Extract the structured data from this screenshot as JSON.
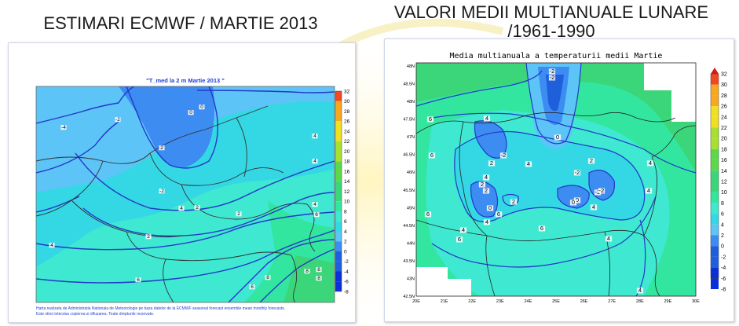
{
  "left": {
    "slide_title": "ESTIMARI ECMWF / MARTIE 2013",
    "map_title": "\"T_med la 2 m Martie 2013 \"",
    "footnote_1": "Harta realizata de Administratia Nationala de Meteorologie pe baza datelor de la ECMWF seasonal forecast ensemble mean monthly forecasts.",
    "footnote_2": "Este strict interzisa copierea si difuzarea. Toate drepturile rezervate.",
    "colorbar_ticks": [
      "32",
      "30",
      "28",
      "26",
      "24",
      "22",
      "20",
      "18",
      "16",
      "14",
      "12",
      "10",
      "8",
      "6",
      "4",
      "2",
      "0",
      "-2",
      "-4",
      "-6",
      "-8"
    ],
    "contour_labels": [
      "-4",
      "-2",
      "2",
      "0",
      "0",
      "2",
      "-2",
      "2",
      "4",
      "4",
      "4",
      "2",
      "4",
      "6",
      "8",
      "8",
      "4",
      "6",
      "6",
      "8",
      "8"
    ]
  },
  "right": {
    "slide_title_line1": "VALORI MEDII MULTIANUALE LUNARE",
    "slide_title_line2": "/1961-1990",
    "map_title": "Media multianuala a temperaturii medii Martie",
    "lat_ticks": [
      "48N",
      "48.5N",
      "48N",
      "47.5N",
      "47N",
      "46.5N",
      "46N",
      "45.5N",
      "45N",
      "44.5N",
      "44N",
      "43.5N",
      "43N",
      "42.5N"
    ],
    "lon_ticks": [
      "20E",
      "21E",
      "22E",
      "23E",
      "24E",
      "25E",
      "26E",
      "27E",
      "28E",
      "29E",
      "30E"
    ],
    "colorbar_ticks": [
      "32",
      "30",
      "28",
      "26",
      "24",
      "22",
      "20",
      "18",
      "16",
      "14",
      "12",
      "10",
      "8",
      "6",
      "4",
      "2",
      "0",
      "-2",
      "-4",
      "-6",
      "-8"
    ],
    "contour_labels": [
      "-2",
      "-2",
      "6",
      "6",
      "4",
      "-2",
      "2",
      "0",
      "4",
      "2",
      "0",
      "-2",
      "-2",
      "4",
      "4",
      "2",
      "2",
      "0",
      "2",
      "0",
      "-2",
      "4",
      "4",
      "6",
      "6",
      "4",
      "6",
      "4",
      "4",
      "6",
      "4"
    ]
  },
  "colors": {
    "deep_blue": "#1f5fdc",
    "blue": "#3c8cf2",
    "light_blue": "#5cc4f6",
    "cyan": "#34d8e4",
    "aqua": "#3fe8d0",
    "green_teal": "#33e6a0",
    "green": "#3cd67a",
    "contour_line": "#2338c8",
    "border_line": "#000000"
  }
}
